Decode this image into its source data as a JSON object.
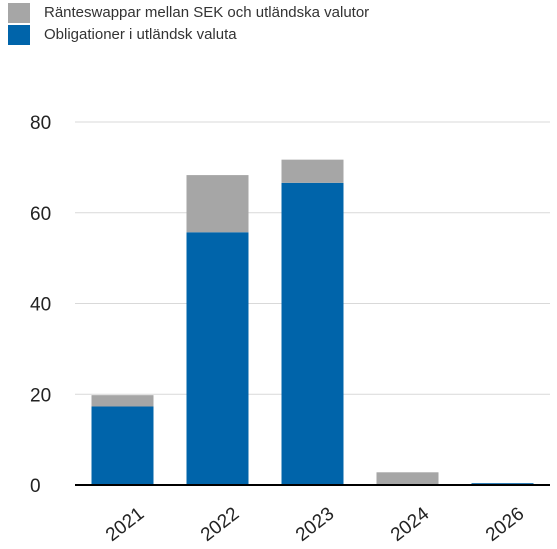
{
  "chart_data": {
    "type": "bar",
    "stacked": true,
    "categories": [
      "2021",
      "2022",
      "2023",
      "2024",
      "2026"
    ],
    "series": [
      {
        "name": "Obligationer i utländsk valuta",
        "color": "#0064AA",
        "values": [
          17.3,
          55.7,
          66.6,
          0,
          0.4
        ]
      },
      {
        "name": "Ränteswappar mellan SEK och utländska valutor",
        "color": "#A6A6A6",
        "values": [
          2.5,
          12.6,
          5.1,
          2.8,
          0
        ]
      }
    ],
    "ylim": [
      0,
      80
    ],
    "yticks": [
      "0",
      "20",
      "40",
      "60",
      "80"
    ],
    "grid": true,
    "legend": "top-left",
    "title": "",
    "xlabel": "",
    "ylabel": ""
  },
  "legend": {
    "items": [
      {
        "label": "Ränteswappar mellan SEK och utländska valutor",
        "color": "#A6A6A6"
      },
      {
        "label": "Obligationer i utländsk valuta",
        "color": "#0064AA"
      }
    ]
  }
}
